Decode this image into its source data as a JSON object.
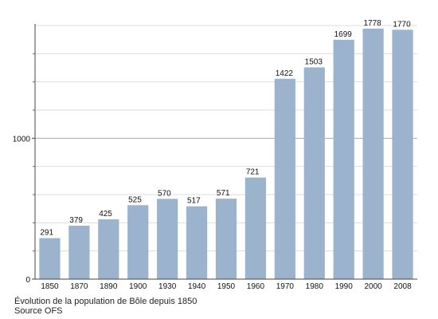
{
  "chart_data": {
    "type": "bar",
    "categories": [
      "1850",
      "1870",
      "1890",
      "1900",
      "1930",
      "1940",
      "1950",
      "1960",
      "1970",
      "1980",
      "1990",
      "2000",
      "2008"
    ],
    "values": [
      291,
      379,
      425,
      525,
      570,
      517,
      571,
      721,
      1422,
      1503,
      1699,
      1778,
      1770
    ],
    "ylim": [
      0,
      1800
    ],
    "y_ticks": [
      "0",
      "1000"
    ],
    "grid": true,
    "bar_color": "#9bb3cc",
    "major_grid_color": "#aaaaaa",
    "minor_grid_color": "#dddddd"
  },
  "caption": {
    "line1": "Évolution de la population de Bôle depuis 1850",
    "line2": "Source OFS"
  }
}
